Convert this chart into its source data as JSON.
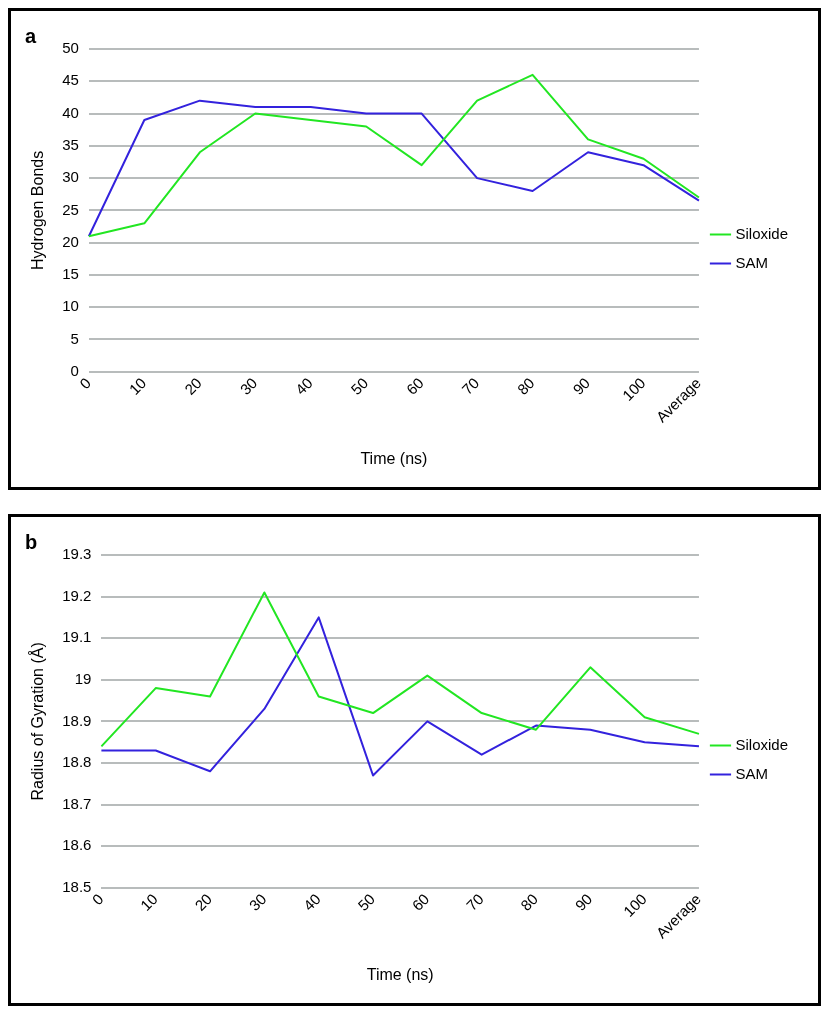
{
  "chart_data": [
    {
      "type": "line",
      "title": "a",
      "xlabel": "Time (ns)",
      "ylabel": "Hydrogen Bonds",
      "categories": [
        "0",
        "10",
        "20",
        "30",
        "40",
        "50",
        "60",
        "70",
        "80",
        "90",
        "100",
        "Average"
      ],
      "series": [
        {
          "name": "Siloxide",
          "color": "#22e622",
          "values": [
            21,
            23,
            34,
            40,
            39,
            38,
            32,
            42,
            46,
            36,
            33,
            27
          ]
        },
        {
          "name": "SAM",
          "color": "#3322dd",
          "values": [
            21,
            39,
            42,
            41,
            41,
            40,
            40,
            30,
            28,
            34,
            32,
            26.5
          ]
        }
      ],
      "ylim": [
        0,
        50
      ],
      "yticks": [
        0,
        5,
        10,
        15,
        20,
        25,
        30,
        35,
        40,
        45,
        50
      ],
      "grid": "y",
      "legend": "right",
      "marker": "none",
      "line_style": "solid"
    },
    {
      "type": "line",
      "title": "b",
      "xlabel": "Time (ns)",
      "ylabel": "Radius of Gyration (Å)",
      "categories": [
        "0",
        "10",
        "20",
        "30",
        "40",
        "50",
        "60",
        "70",
        "80",
        "90",
        "100",
        "Average"
      ],
      "series": [
        {
          "name": "Siloxide",
          "color": "#22e622",
          "values": [
            18.84,
            18.98,
            18.96,
            19.21,
            18.96,
            18.92,
            19.01,
            18.92,
            18.88,
            19.03,
            18.91,
            18.87
          ]
        },
        {
          "name": "SAM",
          "color": "#3322dd",
          "values": [
            18.83,
            18.83,
            18.78,
            18.93,
            19.15,
            18.77,
            18.9,
            18.82,
            18.89,
            18.88,
            18.85,
            18.84
          ]
        }
      ],
      "ylim": [
        18.5,
        19.3
      ],
      "yticks": [
        18.5,
        18.6,
        18.7,
        18.8,
        18.9,
        19,
        19.1,
        19.2,
        19.3
      ],
      "grid": "y",
      "legend": "right",
      "marker": "none",
      "line_style": "solid"
    }
  ]
}
